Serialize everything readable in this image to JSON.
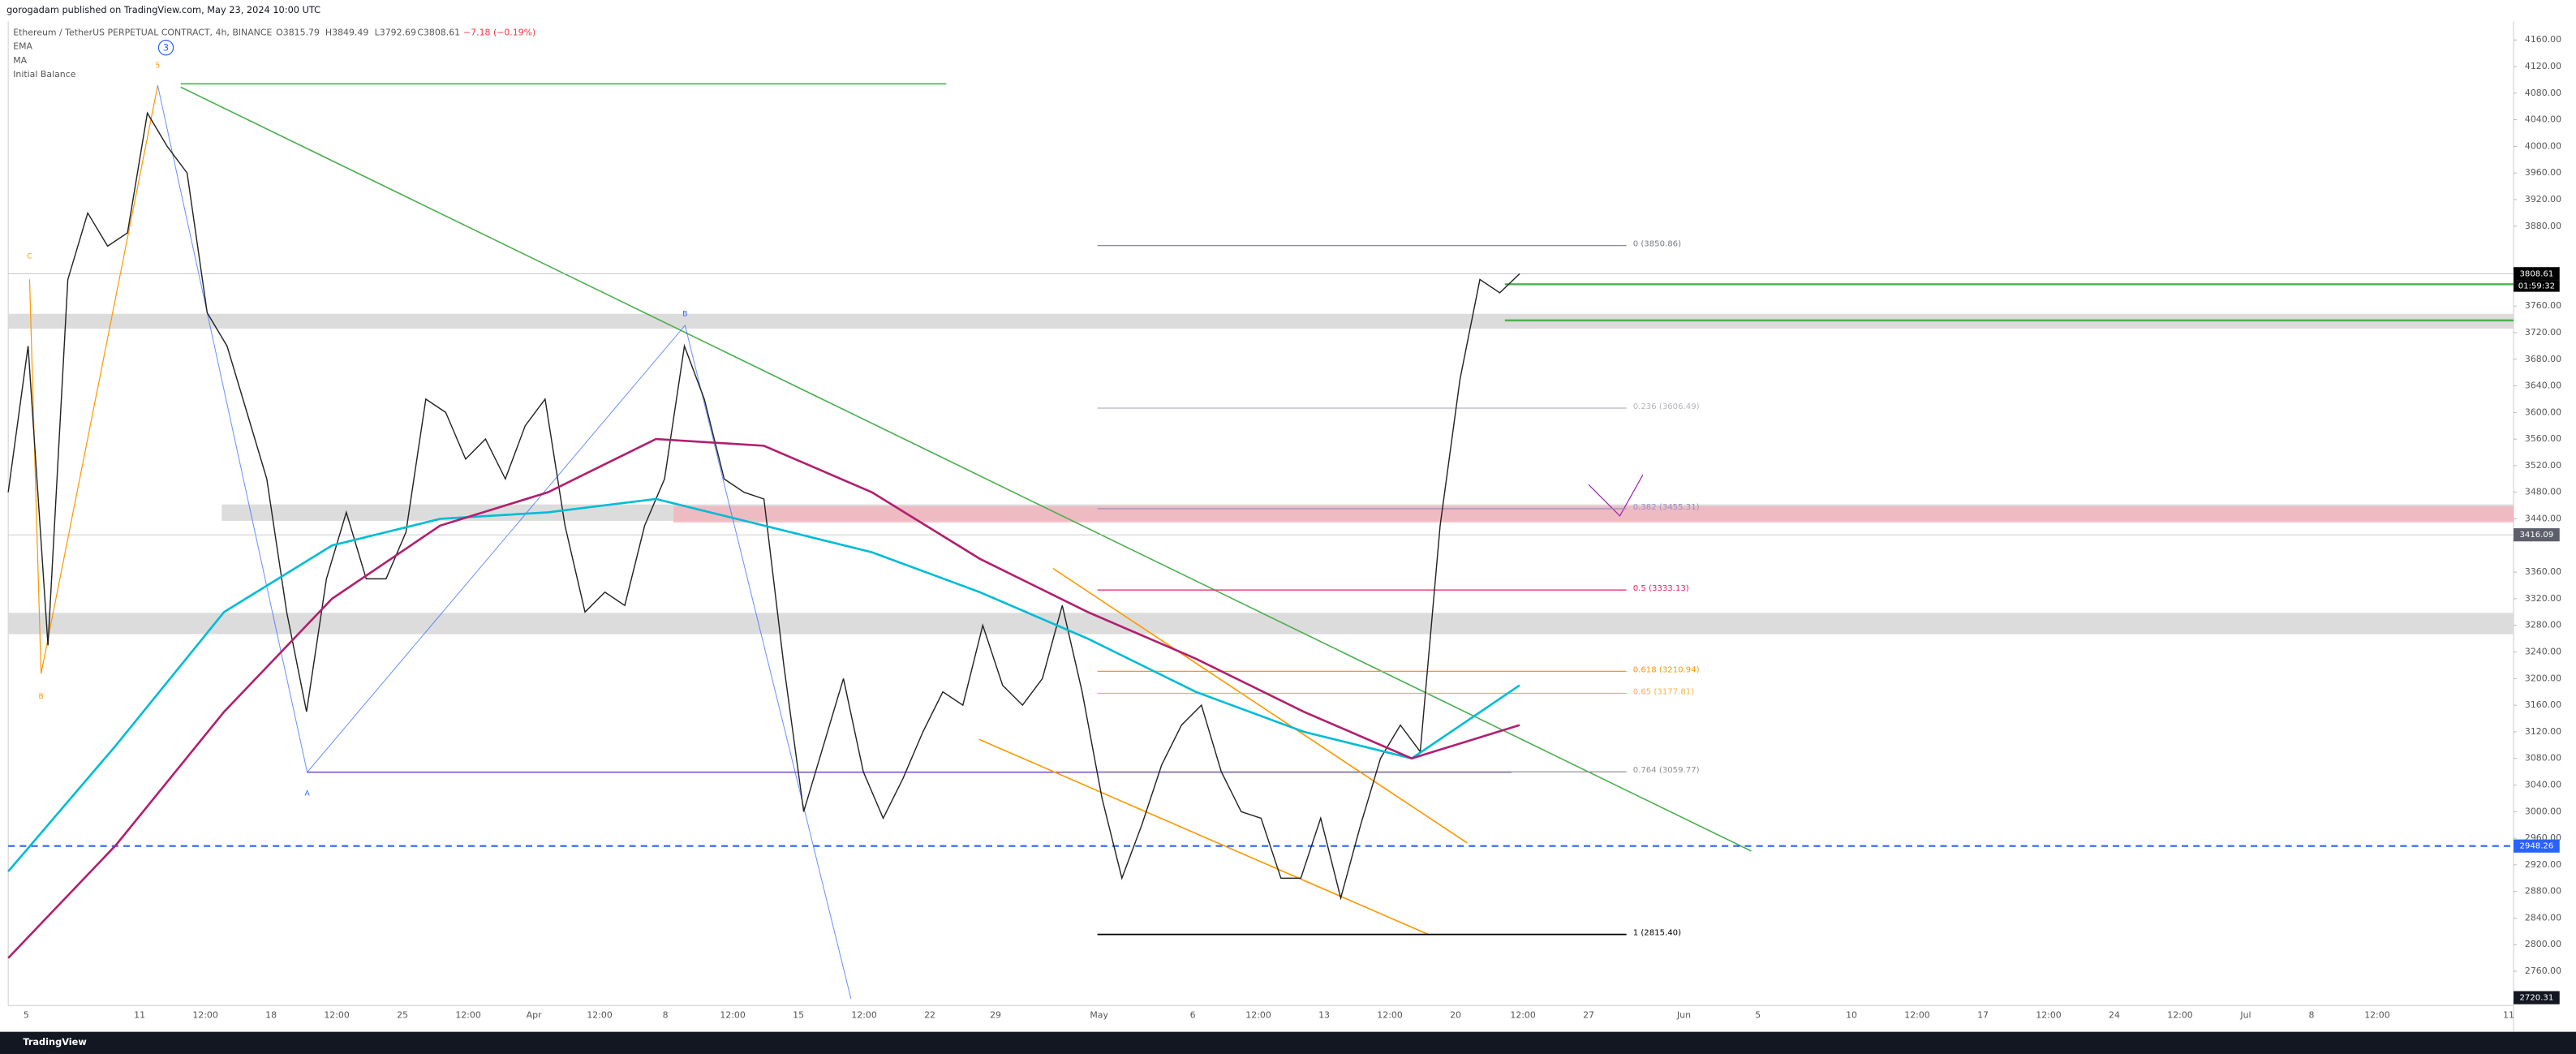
{
  "header": {
    "published": "gorogadam published on TradingView.com, May 23, 2024 10:00 UTC",
    "footer": "TradingView"
  },
  "legend": {
    "symbol": "Ethereum / TetherUS PERPETUAL CONTRACT, 4h, BINANCE",
    "open": "O3815.79",
    "high": "H3849.49",
    "low": "L3792.69",
    "close": "C3808.61",
    "change": "−7.18 (−0.19%)",
    "indicators": [
      "EMA",
      "MA",
      "Initial Balance"
    ]
  },
  "wave_labels": [
    "3",
    "C",
    "B",
    "B",
    "A",
    "5"
  ],
  "chart_data": {
    "type": "line",
    "ylim": [
      2700,
      4180
    ],
    "yticks": [
      {
        "value": 4160,
        "label": "4160.00"
      },
      {
        "value": 4120,
        "label": "4120.00"
      },
      {
        "value": 4080,
        "label": "4080.00"
      },
      {
        "value": 4040,
        "label": "4040.00"
      },
      {
        "value": 4000,
        "label": "4000.00"
      },
      {
        "value": 3960,
        "label": "3960.00"
      },
      {
        "value": 3920,
        "label": "3920.00"
      },
      {
        "value": 3880,
        "label": "3880.00"
      },
      {
        "value": 3760,
        "label": "3760.00"
      },
      {
        "value": 3720,
        "label": "3720.00"
      },
      {
        "value": 3680,
        "label": "3680.00"
      },
      {
        "value": 3640,
        "label": "3640.00"
      },
      {
        "value": 3600,
        "label": "3600.00"
      },
      {
        "value": 3560,
        "label": "3560.00"
      },
      {
        "value": 3520,
        "label": "3520.00"
      },
      {
        "value": 3480,
        "label": "3480.00"
      },
      {
        "value": 3440,
        "label": "3440.00"
      },
      {
        "value": 3360,
        "label": "3360.00"
      },
      {
        "value": 3320,
        "label": "3320.00"
      },
      {
        "value": 3280,
        "label": "3280.00"
      },
      {
        "value": 3240,
        "label": "3240.00"
      },
      {
        "value": 3200,
        "label": "3200.00"
      },
      {
        "value": 3160,
        "label": "3160.00"
      },
      {
        "value": 3120,
        "label": "3120.00"
      },
      {
        "value": 3080,
        "label": "3080.00"
      },
      {
        "value": 3040,
        "label": "3040.00"
      },
      {
        "value": 3000,
        "label": "3000.00"
      },
      {
        "value": 2960,
        "label": "2960.00"
      },
      {
        "value": 2920,
        "label": "2920.00"
      },
      {
        "value": 2880,
        "label": "2880.00"
      },
      {
        "value": 2840,
        "label": "2840.00"
      },
      {
        "value": 2800,
        "label": "2800.00"
      },
      {
        "value": 2760,
        "label": "2760.00"
      }
    ],
    "time_labels": [
      "5",
      "11",
      "12:00",
      "18",
      "12:00",
      "25",
      "12:00",
      "Apr",
      "12:00",
      "8",
      "12:00",
      "15",
      "12:00",
      "22",
      "29",
      "May",
      "6",
      "12:00",
      "13",
      "12:00",
      "20",
      "12:00",
      "27",
      "Jun",
      "5",
      "10",
      "12:00",
      "17",
      "12:00",
      "24",
      "12:00",
      "Jul",
      "8",
      "12:00",
      "11"
    ],
    "series": [
      {
        "name": "Price",
        "color": "#222222",
        "values": [
          3480,
          3700,
          3250,
          3800,
          3900,
          3850,
          3870,
          4050,
          4000,
          3960,
          3750,
          3700,
          3600,
          3500,
          3300,
          3150,
          3350,
          3450,
          3350,
          3350,
          3420,
          3620,
          3600,
          3530,
          3560,
          3500,
          3580,
          3620,
          3430,
          3300,
          3330,
          3310,
          3430,
          3500,
          3700,
          3620,
          3500,
          3480,
          3470,
          3220,
          3000,
          3100,
          3200,
          3060,
          2990,
          3050,
          3120,
          3180,
          3160,
          3280,
          3190,
          3160,
          3200,
          3310,
          3180,
          3020,
          2900,
          2980,
          3070,
          3130,
          3160,
          3060,
          3000,
          2990,
          2900,
          2900,
          2990,
          2870,
          2980,
          3080,
          3130,
          3090,
          3430,
          3650,
          3800,
          3780,
          3808.61
        ]
      },
      {
        "name": "EMA",
        "color": "#00bcd4",
        "values": [
          2910,
          3100,
          3300,
          3400,
          3440,
          3450,
          3470,
          3430,
          3390,
          3330,
          3260,
          3180,
          3120,
          3080,
          3190
        ]
      },
      {
        "name": "MA",
        "color": "#b0206e",
        "values": [
          2780,
          2950,
          3150,
          3320,
          3430,
          3480,
          3560,
          3550,
          3480,
          3380,
          3300,
          3230,
          3150,
          3080,
          3130
        ]
      }
    ],
    "fib": [
      {
        "label": "0 (3850.86)",
        "price": 3850.86,
        "color": "#787b86"
      },
      {
        "label": "0.236 (3606.49)",
        "price": 3606.49,
        "color": "#b2b5be"
      },
      {
        "label": "0.382 (3455.31)",
        "price": 3455.31,
        "color": "#9c8ec4"
      },
      {
        "label": "0.5 (3333.13)",
        "price": 3333.13,
        "color": "#e91e63"
      },
      {
        "label": "0.618 (3210.94)",
        "price": 3210.94,
        "color": "#ff9800"
      },
      {
        "label": "0.65 (3177.81)",
        "price": 3177.81,
        "color": "#f5b041"
      },
      {
        "label": "0.764 (3059.77)",
        "price": 3059.77,
        "color": "#8f8f8f"
      },
      {
        "label": "1 (2815.40)",
        "price": 2815.4,
        "color": "#000000"
      }
    ],
    "price_tags": [
      {
        "label": "3808.61",
        "value": 3808.61,
        "color": "#000000"
      },
      {
        "label": "3416.09",
        "value": 3416.09,
        "color": "#5d606b"
      },
      {
        "label": "2948.26",
        "value": 2948.26,
        "color": "#2962ff"
      },
      {
        "label": "2720.31",
        "value": 2720.31,
        "color": "#131722"
      }
    ],
    "countdown": "01:59:32"
  }
}
